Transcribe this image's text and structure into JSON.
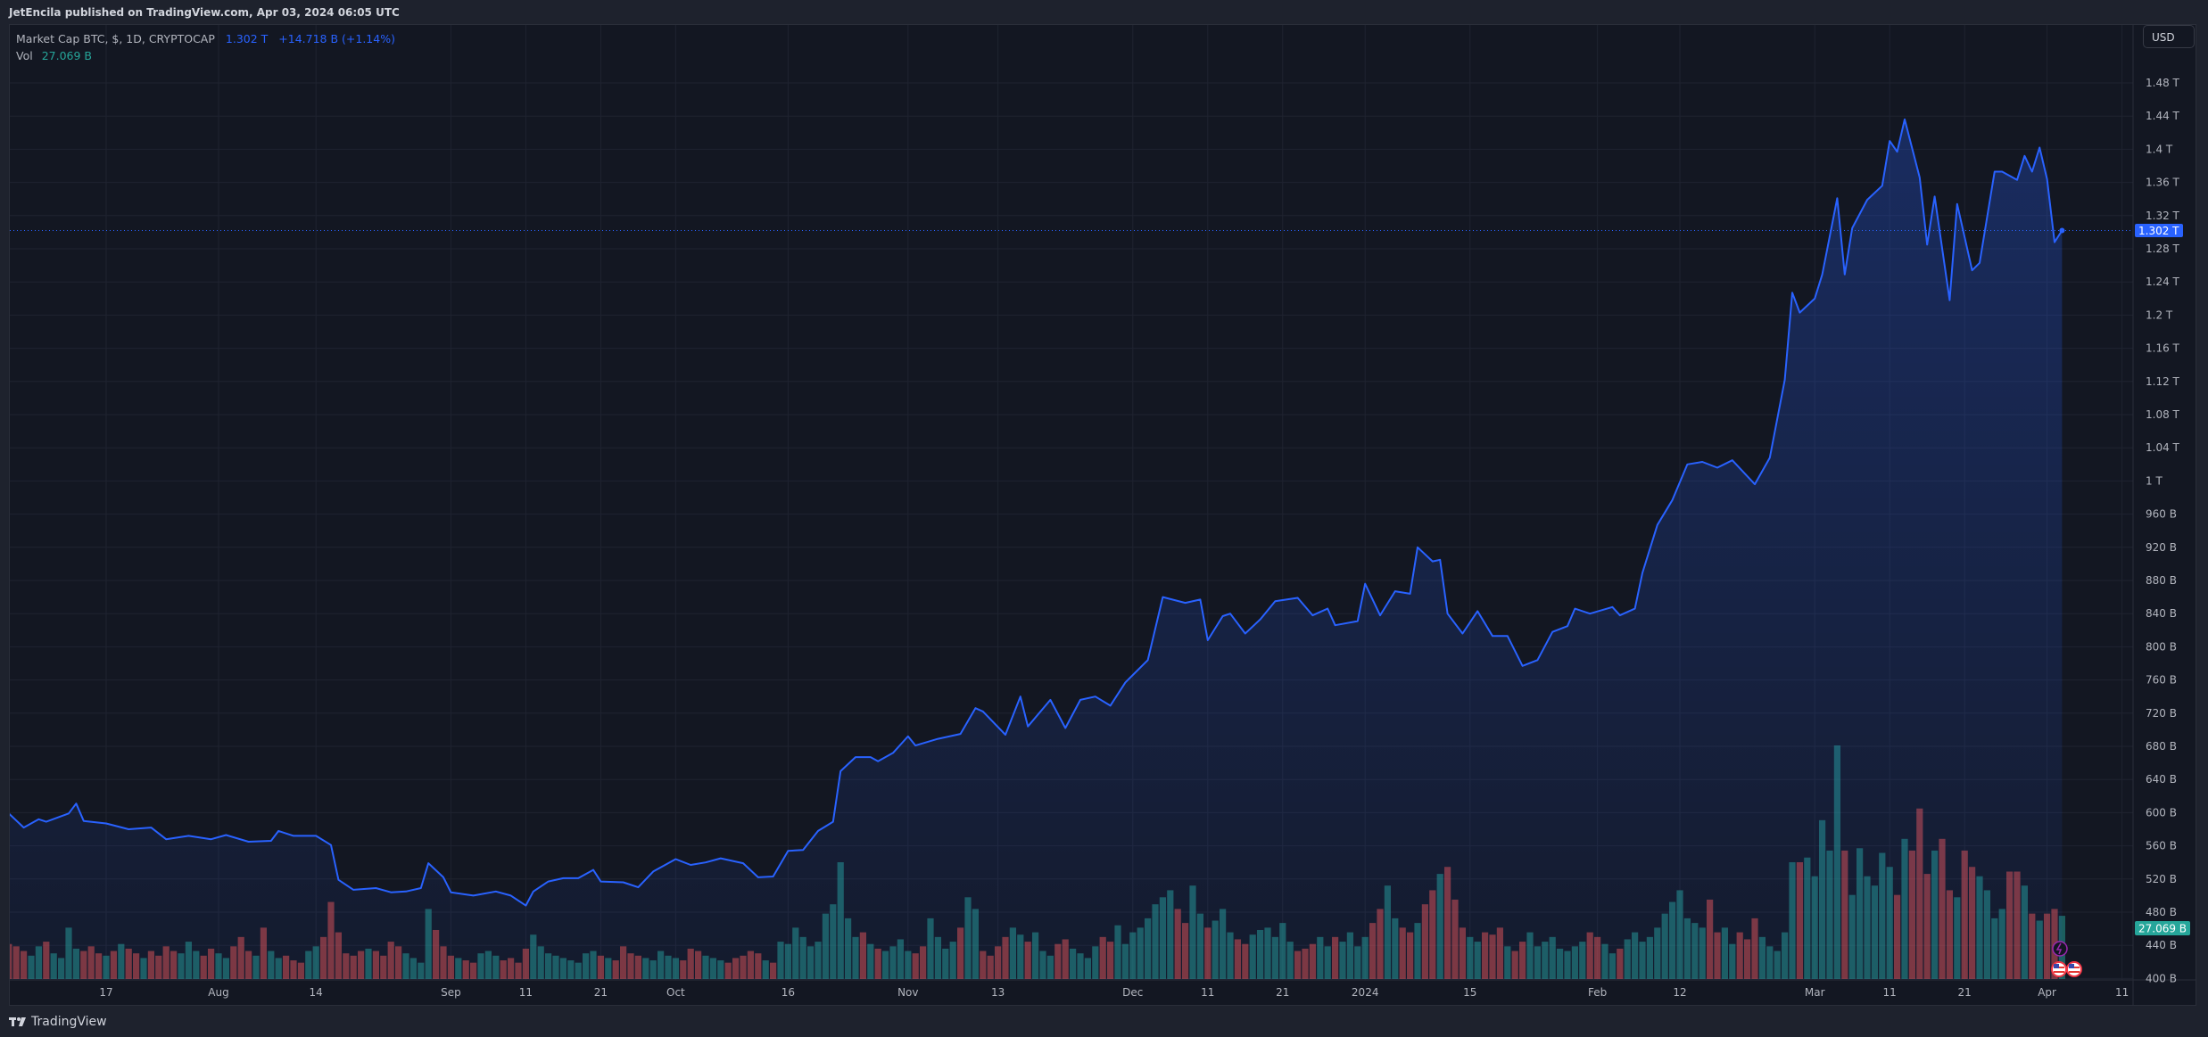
{
  "header": {
    "publisher_text": "JetEncila published on TradingView.com, Apr 03, 2024 06:05 UTC"
  },
  "legend": {
    "symbol": "Market Cap BTC, $, 1D, CRYPTOCAP",
    "last": "1.302 T",
    "change": "+14.718 B (+1.14%)",
    "vol_label": "Vol",
    "vol_value": "27.069 B"
  },
  "price_axis": {
    "currency_button": "USD",
    "last_price_label": "1.302 T",
    "last_volume_label": "27.069 B"
  },
  "footer": {
    "brand": "TradingView"
  },
  "colors": {
    "line": "#2962ff",
    "volume_up": "#26a69a",
    "volume_down": "#ef5350",
    "background": "#131722"
  },
  "chart_data": {
    "type": "area",
    "title": "Market Cap BTC, $, 1D, CRYPTOCAP",
    "ylim_billions": [
      400,
      1500
    ],
    "y_scale": "linear",
    "grid": true,
    "y_ticks": [
      {
        "v": 1480,
        "label": "1.48 T"
      },
      {
        "v": 1440,
        "label": "1.44 T"
      },
      {
        "v": 1400,
        "label": "1.4 T"
      },
      {
        "v": 1360,
        "label": "1.36 T"
      },
      {
        "v": 1320,
        "label": "1.32 T"
      },
      {
        "v": 1280,
        "label": "1.28 T"
      },
      {
        "v": 1240,
        "label": "1.24 T"
      },
      {
        "v": 1200,
        "label": "1.2 T"
      },
      {
        "v": 1160,
        "label": "1.16 T"
      },
      {
        "v": 1120,
        "label": "1.12 T"
      },
      {
        "v": 1080,
        "label": "1.08 T"
      },
      {
        "v": 1040,
        "label": "1.04 T"
      },
      {
        "v": 1000,
        "label": "1 T"
      },
      {
        "v": 960,
        "label": "960 B"
      },
      {
        "v": 920,
        "label": "920 B"
      },
      {
        "v": 880,
        "label": "880 B"
      },
      {
        "v": 840,
        "label": "840 B"
      },
      {
        "v": 800,
        "label": "800 B"
      },
      {
        "v": 760,
        "label": "760 B"
      },
      {
        "v": 720,
        "label": "720 B"
      },
      {
        "v": 680,
        "label": "680 B"
      },
      {
        "v": 640,
        "label": "640 B"
      },
      {
        "v": 600,
        "label": "600 B"
      },
      {
        "v": 560,
        "label": "560 B"
      },
      {
        "v": 520,
        "label": "520 B"
      },
      {
        "v": 480,
        "label": "480 B"
      },
      {
        "v": 440,
        "label": "440 B"
      },
      {
        "v": 400,
        "label": "400 B"
      }
    ],
    "x_ticks": [
      {
        "date": "2023-07-17",
        "label": "17"
      },
      {
        "date": "2023-08-01",
        "label": "Aug"
      },
      {
        "date": "2023-08-14",
        "label": "14"
      },
      {
        "date": "2023-09-01",
        "label": "Sep"
      },
      {
        "date": "2023-09-11",
        "label": "11"
      },
      {
        "date": "2023-09-21",
        "label": "21"
      },
      {
        "date": "2023-10-01",
        "label": "Oct"
      },
      {
        "date": "2023-10-16",
        "label": "16"
      },
      {
        "date": "2023-11-01",
        "label": "Nov"
      },
      {
        "date": "2023-11-13",
        "label": "13"
      },
      {
        "date": "2023-12-01",
        "label": "Dec"
      },
      {
        "date": "2023-12-11",
        "label": "11"
      },
      {
        "date": "2023-12-21",
        "label": "21"
      },
      {
        "date": "2024-01-01",
        "label": "2024"
      },
      {
        "date": "2024-01-15",
        "label": "15"
      },
      {
        "date": "2024-02-01",
        "label": "Feb"
      },
      {
        "date": "2024-02-12",
        "label": "12"
      },
      {
        "date": "2024-03-01",
        "label": "Mar"
      },
      {
        "date": "2024-03-11",
        "label": "11"
      },
      {
        "date": "2024-03-21",
        "label": "21"
      },
      {
        "date": "2024-04-01",
        "label": "Apr"
      },
      {
        "date": "2024-04-11",
        "label": "11"
      }
    ],
    "market_cap_billions": [
      [
        "2023-07-04",
        599
      ],
      [
        "2023-07-06",
        582
      ],
      [
        "2023-07-08",
        592
      ],
      [
        "2023-07-09",
        589
      ],
      [
        "2023-07-12",
        599
      ],
      [
        "2023-07-13",
        611
      ],
      [
        "2023-07-14",
        590
      ],
      [
        "2023-07-17",
        587
      ],
      [
        "2023-07-20",
        580
      ],
      [
        "2023-07-23",
        582
      ],
      [
        "2023-07-25",
        568
      ],
      [
        "2023-07-28",
        572
      ],
      [
        "2023-07-31",
        568
      ],
      [
        "2023-08-02",
        573
      ],
      [
        "2023-08-05",
        565
      ],
      [
        "2023-08-08",
        566
      ],
      [
        "2023-08-09",
        578
      ],
      [
        "2023-08-11",
        572
      ],
      [
        "2023-08-14",
        572
      ],
      [
        "2023-08-16",
        561
      ],
      [
        "2023-08-17",
        519
      ],
      [
        "2023-08-19",
        507
      ],
      [
        "2023-08-22",
        509
      ],
      [
        "2023-08-24",
        504
      ],
      [
        "2023-08-26",
        505
      ],
      [
        "2023-08-28",
        509
      ],
      [
        "2023-08-29",
        539
      ],
      [
        "2023-08-31",
        522
      ],
      [
        "2023-09-01",
        504
      ],
      [
        "2023-09-04",
        500
      ],
      [
        "2023-09-07",
        505
      ],
      [
        "2023-09-09",
        500
      ],
      [
        "2023-09-11",
        488
      ],
      [
        "2023-09-12",
        505
      ],
      [
        "2023-09-14",
        517
      ],
      [
        "2023-09-16",
        521
      ],
      [
        "2023-09-18",
        521
      ],
      [
        "2023-09-20",
        531
      ],
      [
        "2023-09-21",
        517
      ],
      [
        "2023-09-24",
        516
      ],
      [
        "2023-09-26",
        510
      ],
      [
        "2023-09-28",
        529
      ],
      [
        "2023-10-01",
        544
      ],
      [
        "2023-10-03",
        537
      ],
      [
        "2023-10-05",
        540
      ],
      [
        "2023-10-07",
        545
      ],
      [
        "2023-10-10",
        539
      ],
      [
        "2023-10-12",
        522
      ],
      [
        "2023-10-14",
        523
      ],
      [
        "2023-10-16",
        554
      ],
      [
        "2023-10-18",
        555
      ],
      [
        "2023-10-20",
        578
      ],
      [
        "2023-10-22",
        589
      ],
      [
        "2023-10-23",
        650
      ],
      [
        "2023-10-25",
        667
      ],
      [
        "2023-10-27",
        667
      ],
      [
        "2023-10-28",
        662
      ],
      [
        "2023-10-30",
        672
      ],
      [
        "2023-11-01",
        692
      ],
      [
        "2023-11-02",
        681
      ],
      [
        "2023-11-05",
        689
      ],
      [
        "2023-11-08",
        695
      ],
      [
        "2023-11-10",
        726
      ],
      [
        "2023-11-11",
        722
      ],
      [
        "2023-11-14",
        694
      ],
      [
        "2023-11-16",
        740
      ],
      [
        "2023-11-17",
        704
      ],
      [
        "2023-11-20",
        736
      ],
      [
        "2023-11-22",
        702
      ],
      [
        "2023-11-24",
        736
      ],
      [
        "2023-11-26",
        740
      ],
      [
        "2023-11-28",
        729
      ],
      [
        "2023-11-30",
        757
      ],
      [
        "2023-12-03",
        784
      ],
      [
        "2023-12-05",
        860
      ],
      [
        "2023-12-08",
        853
      ],
      [
        "2023-12-10",
        857
      ],
      [
        "2023-12-11",
        808
      ],
      [
        "2023-12-13",
        837
      ],
      [
        "2023-12-14",
        840
      ],
      [
        "2023-12-16",
        816
      ],
      [
        "2023-12-18",
        833
      ],
      [
        "2023-12-20",
        855
      ],
      [
        "2023-12-23",
        859
      ],
      [
        "2023-12-25",
        838
      ],
      [
        "2023-12-27",
        846
      ],
      [
        "2023-12-28",
        826
      ],
      [
        "2023-12-31",
        831
      ],
      [
        "2024-01-01",
        876
      ],
      [
        "2024-01-03",
        838
      ],
      [
        "2024-01-05",
        867
      ],
      [
        "2024-01-07",
        864
      ],
      [
        "2024-01-08",
        920
      ],
      [
        "2024-01-10",
        903
      ],
      [
        "2024-01-11",
        905
      ],
      [
        "2024-01-12",
        840
      ],
      [
        "2024-01-14",
        816
      ],
      [
        "2024-01-16",
        843
      ],
      [
        "2024-01-18",
        813
      ],
      [
        "2024-01-20",
        813
      ],
      [
        "2024-01-22",
        777
      ],
      [
        "2024-01-24",
        784
      ],
      [
        "2024-01-26",
        818
      ],
      [
        "2024-01-28",
        825
      ],
      [
        "2024-01-29",
        846
      ],
      [
        "2024-01-31",
        840
      ],
      [
        "2024-02-03",
        848
      ],
      [
        "2024-02-04",
        838
      ],
      [
        "2024-02-06",
        846
      ],
      [
        "2024-02-07",
        889
      ],
      [
        "2024-02-09",
        947
      ],
      [
        "2024-02-11",
        977
      ],
      [
        "2024-02-13",
        1020
      ],
      [
        "2024-02-15",
        1023
      ],
      [
        "2024-02-17",
        1016
      ],
      [
        "2024-02-19",
        1025
      ],
      [
        "2024-02-22",
        996
      ],
      [
        "2024-02-24",
        1028
      ],
      [
        "2024-02-26",
        1122
      ],
      [
        "2024-02-27",
        1227
      ],
      [
        "2024-02-28",
        1203
      ],
      [
        "2024-03-01",
        1220
      ],
      [
        "2024-03-02",
        1249
      ],
      [
        "2024-03-04",
        1341
      ],
      [
        "2024-03-05",
        1249
      ],
      [
        "2024-03-06",
        1305
      ],
      [
        "2024-03-08",
        1339
      ],
      [
        "2024-03-10",
        1356
      ],
      [
        "2024-03-11",
        1410
      ],
      [
        "2024-03-12",
        1397
      ],
      [
        "2024-03-13",
        1436
      ],
      [
        "2024-03-15",
        1366
      ],
      [
        "2024-03-16",
        1285
      ],
      [
        "2024-03-17",
        1343
      ],
      [
        "2024-03-19",
        1218
      ],
      [
        "2024-03-20",
        1334
      ],
      [
        "2024-03-22",
        1254
      ],
      [
        "2024-03-23",
        1263
      ],
      [
        "2024-03-25",
        1373
      ],
      [
        "2024-03-26",
        1373
      ],
      [
        "2024-03-28",
        1363
      ],
      [
        "2024-03-29",
        1392
      ],
      [
        "2024-03-30",
        1373
      ],
      [
        "2024-03-31",
        1402
      ],
      [
        "2024-04-01",
        1364
      ],
      [
        "2024-04-02",
        1288
      ],
      [
        "2024-04-03",
        1302
      ]
    ],
    "volume_start_date": "2023-07-04",
    "volume_billions_daily": [
      15,
      14,
      12,
      10,
      14,
      16,
      11,
      9,
      22,
      13,
      12,
      14,
      11,
      10,
      12,
      15,
      13,
      11,
      9,
      12,
      10,
      14,
      12,
      11,
      16,
      12,
      10,
      13,
      11,
      9,
      14,
      18,
      12,
      10,
      22,
      12,
      9,
      10,
      8,
      7,
      12,
      14,
      18,
      33,
      20,
      11,
      10,
      12,
      13,
      12,
      10,
      16,
      14,
      11,
      9,
      7,
      30,
      21,
      14,
      10,
      9,
      8,
      7,
      11,
      12,
      10,
      8,
      9,
      7,
      13,
      19,
      14,
      11,
      10,
      9,
      8,
      7,
      11,
      12,
      10,
      9,
      8,
      14,
      11,
      10,
      9,
      8,
      12,
      10,
      9,
      8,
      13,
      12,
      10,
      9,
      8,
      7,
      9,
      10,
      12,
      11,
      8,
      7,
      16,
      15,
      22,
      18,
      14,
      16,
      28,
      32,
      50,
      26,
      18,
      20,
      15,
      13,
      12,
      14,
      17,
      12,
      11,
      14,
      26,
      18,
      13,
      16,
      22,
      35,
      30,
      12,
      10,
      14,
      18,
      22,
      19,
      16,
      20,
      12,
      10,
      15,
      17,
      13,
      11,
      9,
      14,
      18,
      16,
      23,
      15,
      20,
      22,
      26,
      32,
      35,
      38,
      30,
      24,
      40,
      28,
      22,
      25,
      30,
      20,
      17,
      15,
      19,
      21,
      22,
      18,
      24,
      16,
      12,
      13,
      15,
      18,
      14,
      18,
      16,
      20,
      14,
      18,
      24,
      30,
      40,
      26,
      22,
      20,
      24,
      32,
      38,
      45,
      48,
      34,
      22,
      18,
      16,
      20,
      19,
      22,
      14,
      12,
      16,
      20,
      14,
      16,
      18,
      13,
      12,
      14,
      16,
      20,
      18,
      15,
      11,
      13,
      17,
      20,
      16,
      18,
      22,
      28,
      33,
      38,
      26,
      24,
      22,
      34,
      20,
      22,
      15,
      20,
      17,
      26,
      18,
      14,
      12,
      20,
      50,
      50,
      52,
      44,
      68,
      55,
      100,
      55,
      36,
      56,
      44,
      40,
      54,
      48,
      36,
      60,
      55,
      73,
      45,
      55,
      60,
      38,
      35,
      55,
      48,
      44,
      38,
      26,
      30,
      46,
      46,
      40,
      28,
      25,
      28,
      30,
      27.069
    ],
    "last_value_billions": 1302,
    "last_volume_billions": 27.069
  }
}
